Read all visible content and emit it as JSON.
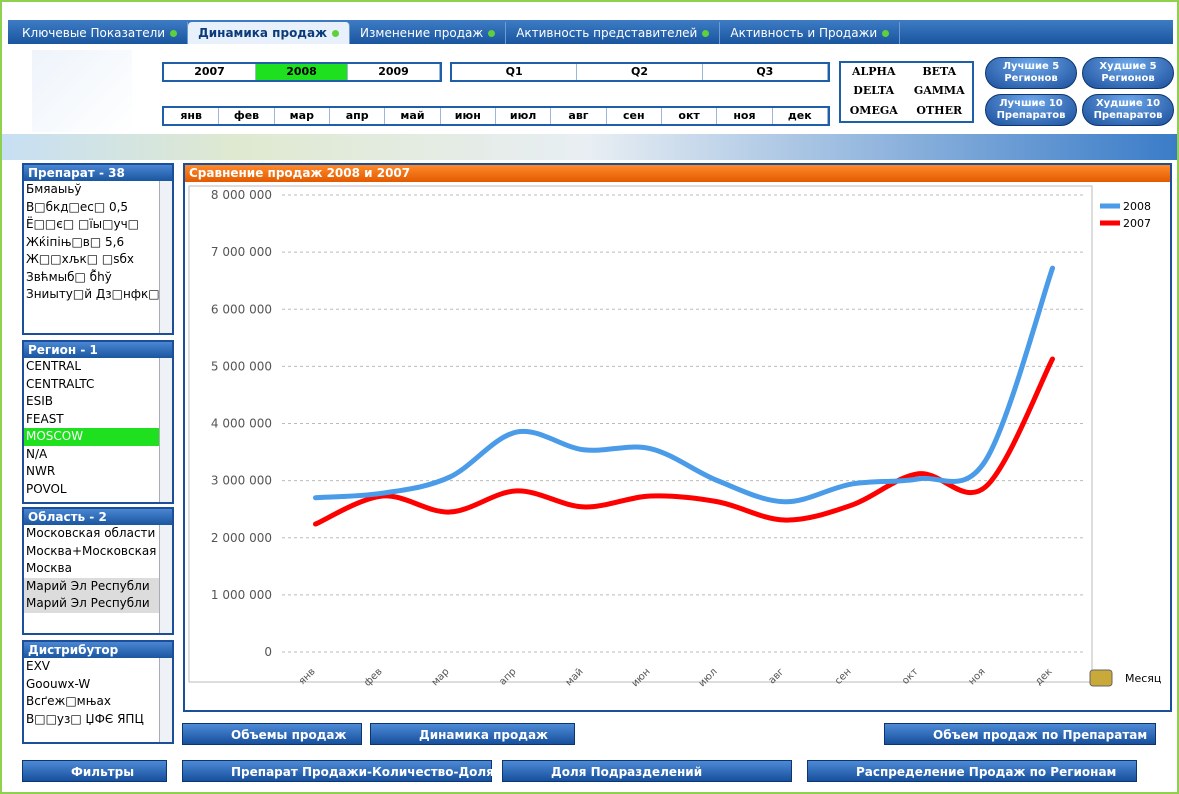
{
  "tabs": [
    "Ключевые Показатели",
    "Динамика продаж",
    "Изменение продаж",
    "Активность представителей",
    "Активность и Продажи"
  ],
  "years": [
    "2007",
    "2008",
    "2009"
  ],
  "quarters": [
    "Q1",
    "Q2",
    "Q3"
  ],
  "months": [
    "янв",
    "фев",
    "мар",
    "апр",
    "май",
    "июн",
    "июл",
    "авг",
    "сен",
    "окт",
    "ноя",
    "дек"
  ],
  "groups": [
    "ALPHA",
    "BETA",
    "DELTA",
    "GAMMA",
    "OMEGA",
    "OTHER"
  ],
  "top_buttons": [
    "Лучшие 5 Регионов",
    "Худшие 5 Регионов",
    "Лучшие 10 Препаратов",
    "Худшие 10 Препаратов"
  ],
  "listboxes": [
    {
      "title": "Препарат - 38",
      "items": [
        "Бмяаыьў",
        "В□бкд□ес□ 0,5",
        "Ё□□є□ □їы□уч□",
        "Жќіпiњ□в□ 5,6",
        "Ж□□хљк□ □sбх",
        "Звћмыб□ б̃hў",
        "Зниыту□й Дз□нфк□"
      ]
    },
    {
      "title": "Регион - 1",
      "items": [
        "CENTRAL",
        "CENTRALTC",
        "ESIB",
        "FEAST",
        "MOSCOW",
        "N/A",
        "NWR",
        "POVOL"
      ]
    },
    {
      "title": "Область - 2",
      "items": [
        "Московская области",
        "Москва+Московская",
        "Москва",
        "Марий Эл Республи",
        "Марий Эл Республи"
      ]
    },
    {
      "title": "Дистрибутор",
      "items": [
        "EXV",
        "Goouwx-W",
        "Всґеж□мњах",
        "В□□уз□ ЏФЄ ЯПЦ"
      ]
    }
  ],
  "bottom_buttons": [
    "Объемы продаж",
    "Динамика продаж",
    "Объем продаж по Препаратам",
    "Фильтры",
    "Препарат Продажи-Количество-Доля",
    "Доля Подразделений",
    "Распределение Продаж по Регионам"
  ],
  "chart_data": {
    "type": "line",
    "title": "Сравнение продаж 2008 и 2007",
    "x_label": "Месяц",
    "categories": [
      "янв",
      "фев",
      "мар",
      "апр",
      "май",
      "июн",
      "июл",
      "авг",
      "сен",
      "окт",
      "ноя",
      "дек"
    ],
    "series": [
      {
        "name": "2008",
        "color": "#4a9be8",
        "values": [
          2700000,
          2780000,
          3060000,
          3850000,
          3540000,
          3560000,
          3000000,
          2630000,
          2940000,
          3030000,
          3350000,
          6720000
        ]
      },
      {
        "name": "2007",
        "color": "#ff0000",
        "values": [
          2240000,
          2730000,
          2450000,
          2820000,
          2540000,
          2730000,
          2630000,
          2310000,
          2570000,
          3120000,
          2890000,
          5130000
        ]
      }
    ],
    "ylim": [
      0,
      8000000
    ],
    "yticks": [
      0,
      {
        "value": 1000000,
        "label": "1 000 000"
      },
      {
        "value": 2000000,
        "label": "2 000 000"
      },
      {
        "value": 3000000,
        "label": "3 000 000"
      },
      {
        "value": 4000000,
        "label": "4 000 000"
      },
      {
        "value": 5000000,
        "label": "5 000 000"
      },
      {
        "value": 6000000,
        "label": "6 000 000"
      },
      {
        "value": 7000000,
        "label": "7 000 000"
      },
      {
        "value": 8000000,
        "label": "8 000 000"
      }
    ],
    "grid": true,
    "legend": "top-right"
  }
}
